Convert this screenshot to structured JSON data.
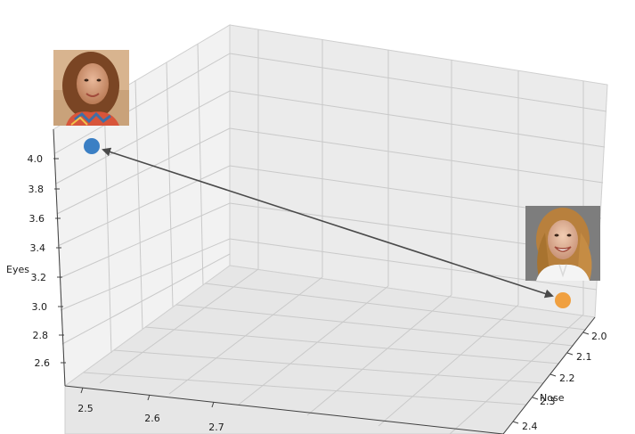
{
  "chart_data": {
    "type": "scatter",
    "projection": "3d",
    "title": "",
    "xlabel": "",
    "ylabel": "Nose",
    "zlabel": "Eyes",
    "x_ticks": [
      "2.5",
      "2.6",
      "2.7"
    ],
    "y_ticks": [
      "2.0",
      "2.1",
      "2.2",
      "2.3",
      "2.4"
    ],
    "z_ticks": [
      "2.6",
      "2.8",
      "3.0",
      "3.2",
      "3.4",
      "3.6",
      "3.8",
      "4.0"
    ],
    "grid": true,
    "points": [
      {
        "color": "#3b7fc4",
        "thumbnail": "portrait-woman-scarf",
        "x": 2.5,
        "nose": 2.3,
        "eyes": 4.0
      },
      {
        "color": "#f0a040",
        "thumbnail": "portrait-woman-smiling",
        "x": 2.8,
        "nose": 2.2,
        "eyes": 2.9
      }
    ],
    "arrow": {
      "from": 0,
      "to": 1,
      "style": "double-headed",
      "color": "#4a4a4a"
    }
  }
}
